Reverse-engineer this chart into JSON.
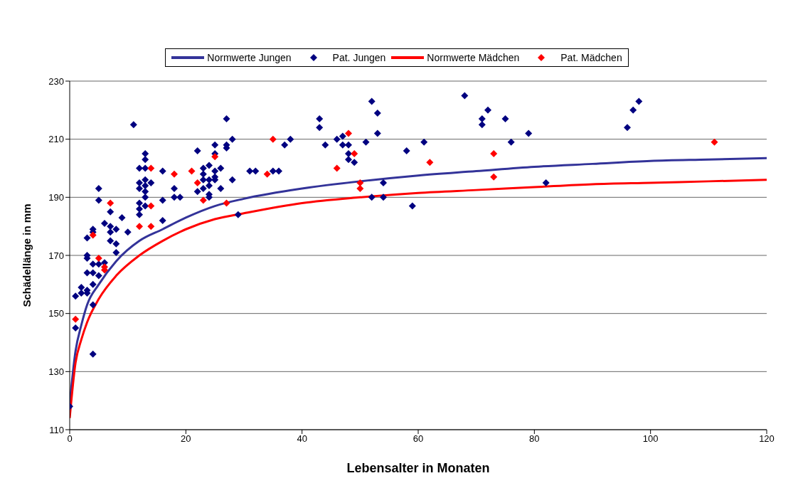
{
  "chart_data": {
    "type": "scatter",
    "xlabel": "Lebensalter in Monaten",
    "ylabel": "Schädellänge in mm",
    "xlim": [
      0,
      120
    ],
    "xticks": [
      0,
      20,
      40,
      60,
      80,
      100,
      120
    ],
    "ylim": [
      110,
      230
    ],
    "yticks": [
      110,
      130,
      150,
      170,
      190,
      210,
      230
    ],
    "grid": "y",
    "legend": "top",
    "series": [
      {
        "name": "Normwerte Jungen",
        "type": "line",
        "color": "#333399",
        "marker": "none",
        "line_style": "solid",
        "x": [
          0,
          1,
          2,
          3,
          5,
          8,
          12,
          16,
          20,
          25,
          30,
          40,
          50,
          60,
          70,
          80,
          90,
          100,
          110,
          120
        ],
        "values": [
          119,
          137,
          146,
          153,
          160,
          168,
          175,
          179,
          183,
          187,
          189.5,
          193,
          195.5,
          197.5,
          199,
          200.5,
          201.5,
          202.5,
          203,
          203.5
        ]
      },
      {
        "name": "Pat. Jungen",
        "type": "scatter",
        "color": "#000080",
        "marker": "diamond",
        "x": [
          0,
          1,
          1,
          2,
          2,
          3,
          3,
          3,
          3,
          3,
          3,
          4,
          4,
          4,
          4,
          4,
          4,
          4,
          5,
          5,
          5,
          5,
          6,
          6,
          7,
          7,
          7,
          7,
          8,
          8,
          8,
          9,
          10,
          11,
          12,
          12,
          12,
          12,
          12,
          12,
          13,
          13,
          13,
          13,
          13,
          13,
          13,
          13,
          14,
          16,
          16,
          16,
          18,
          18,
          19,
          22,
          22,
          23,
          23,
          23,
          23,
          24,
          24,
          24,
          24,
          24,
          25,
          25,
          25,
          25,
          25,
          26,
          26,
          27,
          27,
          27,
          28,
          28,
          29,
          31,
          32,
          35,
          36,
          37,
          38,
          43,
          43,
          44,
          46,
          47,
          47,
          48,
          48,
          48,
          49,
          51,
          52,
          52,
          53,
          53,
          54,
          54,
          58,
          59,
          61,
          68,
          71,
          71,
          72,
          75,
          76,
          79,
          82,
          96,
          97,
          98
        ],
        "values": [
          118,
          156,
          145,
          157,
          159,
          158,
          157,
          164,
          170,
          169,
          176,
          178,
          179,
          167,
          164,
          160,
          153,
          136,
          193,
          189,
          167,
          163,
          181,
          167.5,
          180,
          178,
          175,
          185,
          179,
          174,
          171,
          183,
          178,
          215,
          200,
          195,
          193,
          188,
          186,
          184,
          205,
          203,
          200,
          196,
          194,
          192,
          190,
          187,
          195,
          199,
          189,
          182,
          193,
          190,
          190,
          206,
          192,
          200,
          198,
          196,
          193,
          201,
          196,
          194,
          191,
          190,
          208,
          205,
          199,
          197,
          196,
          200,
          193,
          217,
          208,
          207,
          210,
          196,
          184,
          199,
          199,
          199,
          199,
          208,
          210,
          217,
          214,
          208,
          210,
          211,
          208,
          208,
          205,
          203,
          202,
          209,
          223,
          190,
          219,
          212,
          195,
          190,
          206,
          187,
          209,
          225,
          217,
          215,
          220,
          217,
          209,
          212,
          195,
          214,
          220,
          223
        ]
      },
      {
        "name": "Normwerte Mädchen",
        "type": "line",
        "color": "#ff0000",
        "marker": "none",
        "line_style": "solid",
        "x": [
          0,
          1,
          2,
          3,
          5,
          8,
          12,
          16,
          20,
          25,
          30,
          40,
          50,
          60,
          70,
          80,
          90,
          100,
          110,
          120
        ],
        "values": [
          114,
          133,
          141,
          147,
          155,
          163,
          170,
          175,
          179,
          182.5,
          184.5,
          188,
          190,
          191.5,
          192.5,
          193.5,
          194.5,
          195,
          195.5,
          196
        ]
      },
      {
        "name": "Pat. Mädchen",
        "type": "scatter",
        "color": "#ff0000",
        "marker": "diamond",
        "x": [
          1,
          4,
          5,
          6,
          6,
          7,
          12,
          14,
          14,
          14,
          18,
          21,
          22,
          23,
          25,
          27,
          34,
          35,
          46,
          48,
          49,
          50,
          50,
          62,
          73,
          73,
          111
        ],
        "values": [
          148,
          177,
          169,
          166,
          165,
          188,
          180,
          200,
          187,
          180,
          198,
          199,
          195,
          189,
          204,
          188,
          198,
          210,
          200,
          212,
          205,
          195,
          193,
          202,
          205,
          197,
          209
        ]
      }
    ]
  }
}
